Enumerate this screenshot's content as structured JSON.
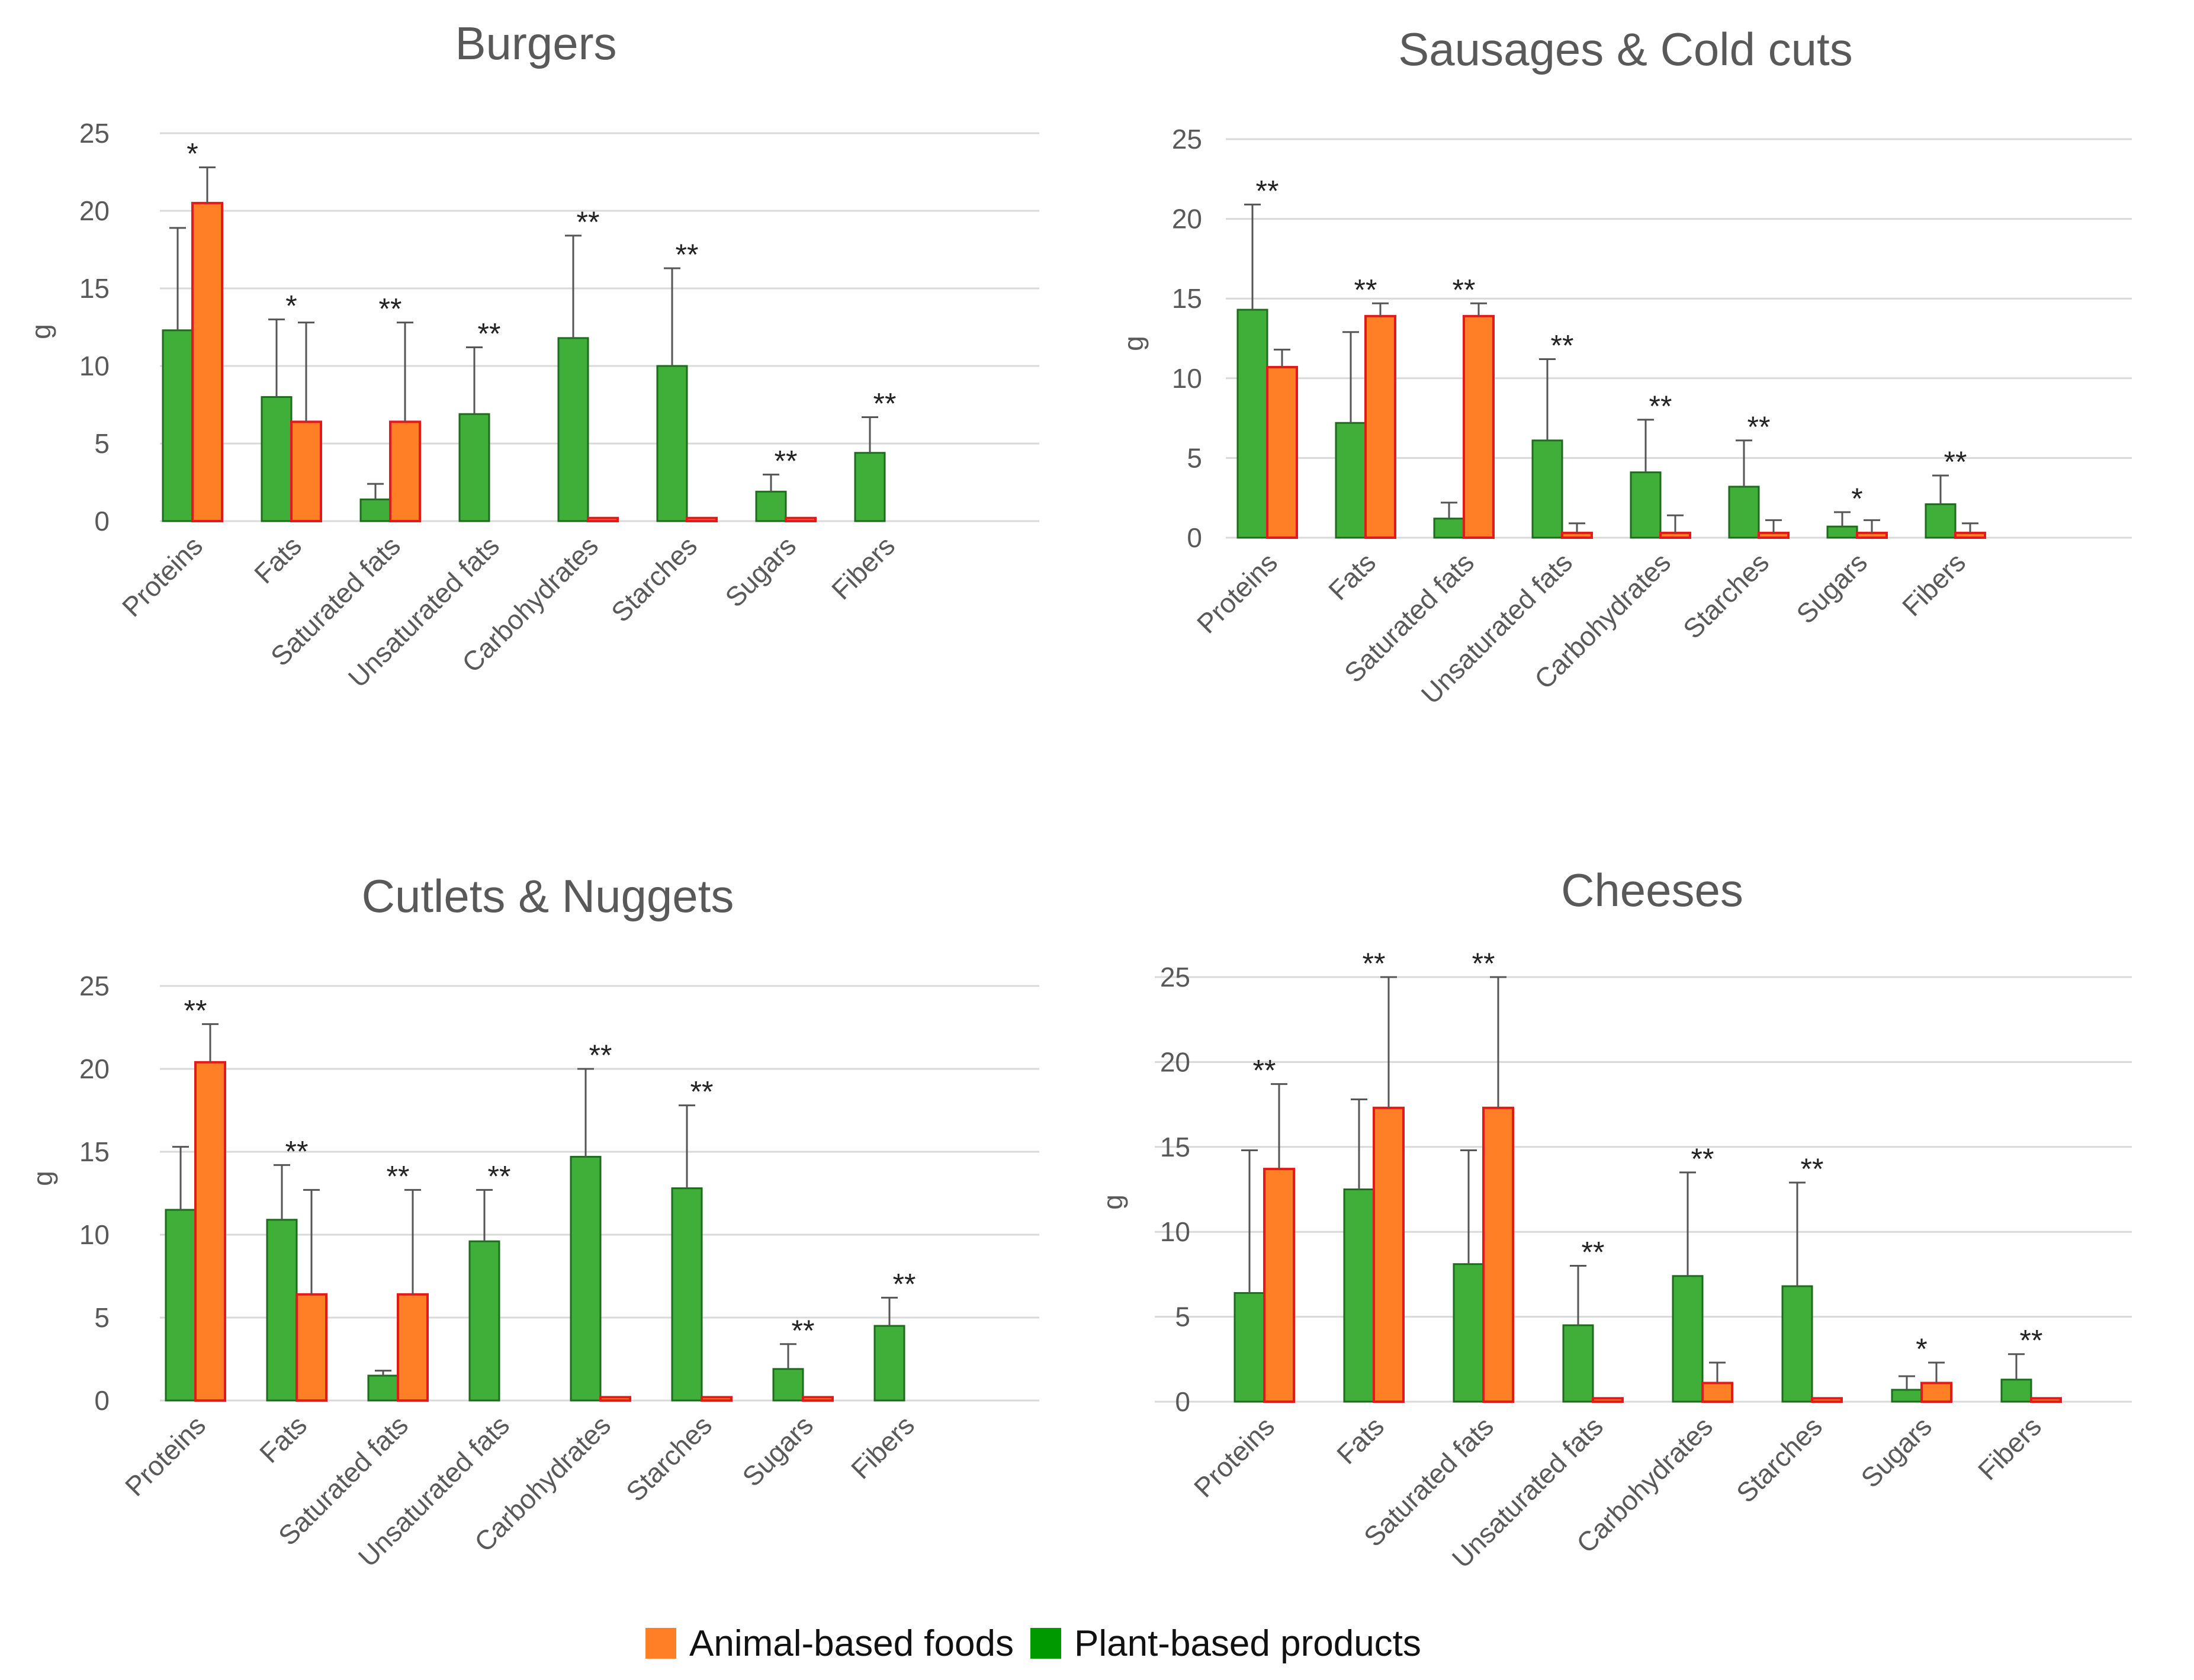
{
  "colors": {
    "plant_fill": "#3FAF3A",
    "plant_stroke": "#1E6B1E",
    "animal_fill": "#FF7F27",
    "animal_stroke": "#E31A1A",
    "grid": "#d9d9d9",
    "text": "#595959"
  },
  "legend": {
    "animal_label": "Animal-based foods",
    "plant_label": "Plant-based products",
    "animal_color": "#FF7F27",
    "plant_color": "#009900"
  },
  "chart_data": [
    {
      "type": "bar",
      "title": "Burgers",
      "ylabel": "g",
      "ylim": [
        0,
        25
      ],
      "yticks": [
        0,
        5,
        10,
        15,
        20,
        25
      ],
      "categories": [
        "Proteins",
        "Fats",
        "Saturated fats",
        "Unsaturated fats",
        "Carbohydrates",
        "Starches",
        "Sugars",
        "Fibers"
      ],
      "series": [
        {
          "name": "Plant-based products",
          "values": [
            12.3,
            8.0,
            1.4,
            6.9,
            11.8,
            10.0,
            1.9,
            4.4
          ],
          "error": [
            6.6,
            5.0,
            1.0,
            4.3,
            6.6,
            6.3,
            1.1,
            2.3
          ]
        },
        {
          "name": "Animal-based foods",
          "values": [
            20.5,
            6.4,
            6.4,
            0,
            0.2,
            0.2,
            0.2,
            0
          ],
          "error": [
            2.3,
            6.4,
            6.4,
            0,
            0,
            0,
            0,
            0
          ]
        }
      ],
      "significance": [
        "*",
        "*",
        "**",
        "**",
        "**",
        "**",
        "**",
        "**"
      ]
    },
    {
      "type": "bar",
      "title": "Sausages & Cold cuts",
      "ylabel": "g",
      "ylim": [
        0,
        25
      ],
      "yticks": [
        0,
        5,
        10,
        15,
        20,
        25
      ],
      "categories": [
        "Proteins",
        "Fats",
        "Saturated fats",
        "Unsaturated fats",
        "Carbohydrates",
        "Starches",
        "Sugars",
        "Fibers"
      ],
      "series": [
        {
          "name": "Plant-based products",
          "values": [
            14.3,
            7.2,
            1.2,
            6.1,
            4.1,
            3.2,
            0.7,
            2.1
          ],
          "error": [
            6.6,
            5.7,
            1.0,
            5.1,
            3.3,
            2.9,
            0.9,
            1.8
          ]
        },
        {
          "name": "Animal-based foods",
          "values": [
            10.7,
            13.9,
            13.9,
            0.3,
            0.3,
            0.3,
            0.3,
            0.3
          ],
          "error": [
            1.1,
            0.8,
            0.8,
            0.6,
            1.1,
            0.8,
            0.8,
            0.6
          ]
        }
      ],
      "significance": [
        "**",
        "**",
        "**",
        "**",
        "**",
        "**",
        "*",
        "**"
      ]
    },
    {
      "type": "bar",
      "title": "Cutlets & Nuggets",
      "ylabel": "g",
      "ylim": [
        0,
        25
      ],
      "yticks": [
        0,
        5,
        10,
        15,
        20,
        25
      ],
      "categories": [
        "Proteins",
        "Fats",
        "Saturated fats",
        "Unsaturated fats",
        "Carbohydrates",
        "Starches",
        "Sugars",
        "Fibers"
      ],
      "series": [
        {
          "name": "Plant-based products",
          "values": [
            11.5,
            10.9,
            1.5,
            9.6,
            14.7,
            12.8,
            1.9,
            4.5
          ],
          "error": [
            3.8,
            3.3,
            0.3,
            3.1,
            5.3,
            5.0,
            1.5,
            1.7
          ]
        },
        {
          "name": "Animal-based foods",
          "values": [
            20.4,
            6.4,
            6.4,
            0,
            0.2,
            0.2,
            0.2,
            0
          ],
          "error": [
            2.3,
            6.3,
            6.3,
            0,
            0,
            0,
            0,
            0
          ]
        }
      ],
      "significance": [
        "**",
        "**",
        "**",
        "**",
        "**",
        "**",
        "**",
        "**"
      ]
    },
    {
      "type": "bar",
      "title": "Cheeses",
      "ylabel": "g",
      "ylim": [
        0,
        25
      ],
      "yticks": [
        0,
        5,
        10,
        15,
        20,
        25
      ],
      "categories": [
        "Proteins",
        "Fats",
        "Saturated fats",
        "Unsaturated fats",
        "Carbohydrates",
        "Starches",
        "Sugars",
        "Fibers"
      ],
      "series": [
        {
          "name": "Plant-based products",
          "values": [
            6.4,
            12.5,
            8.1,
            4.5,
            7.4,
            6.8,
            0.7,
            1.3
          ],
          "error": [
            8.4,
            5.3,
            6.7,
            3.5,
            6.1,
            6.1,
            0.8,
            1.5
          ]
        },
        {
          "name": "Animal-based foods",
          "values": [
            13.7,
            17.3,
            17.3,
            0.2,
            1.1,
            0.2,
            1.1,
            0.2
          ],
          "error": [
            5.0,
            7.7,
            7.7,
            0,
            1.2,
            0,
            1.2,
            0
          ]
        }
      ],
      "significance": [
        "**",
        "**",
        "**",
        "**",
        "**",
        "**",
        "*",
        "**"
      ]
    }
  ]
}
